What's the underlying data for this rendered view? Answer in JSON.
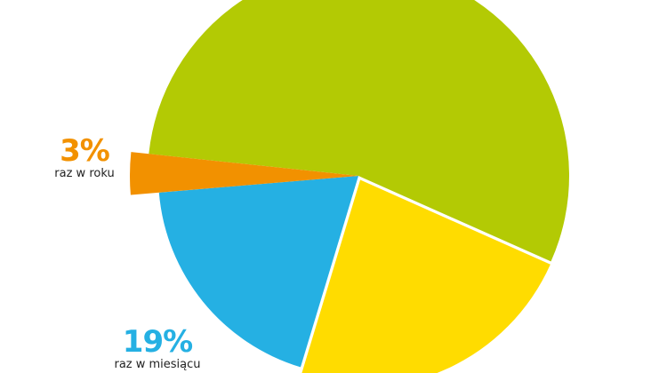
{
  "chart_data": {
    "type": "pie",
    "slices": [
      {
        "value": 55,
        "color": "#b3ca04",
        "label": "",
        "pct_text": ""
      },
      {
        "value": 23,
        "color": "#ffdc00",
        "label": "",
        "pct_text": ""
      },
      {
        "value": 19,
        "color": "#25b0e3",
        "label": "raz w miesiącu",
        "pct_text": "19%"
      },
      {
        "value": 3,
        "color": "#f29100",
        "label": "raz w roku",
        "pct_text": "3%"
      }
    ]
  }
}
